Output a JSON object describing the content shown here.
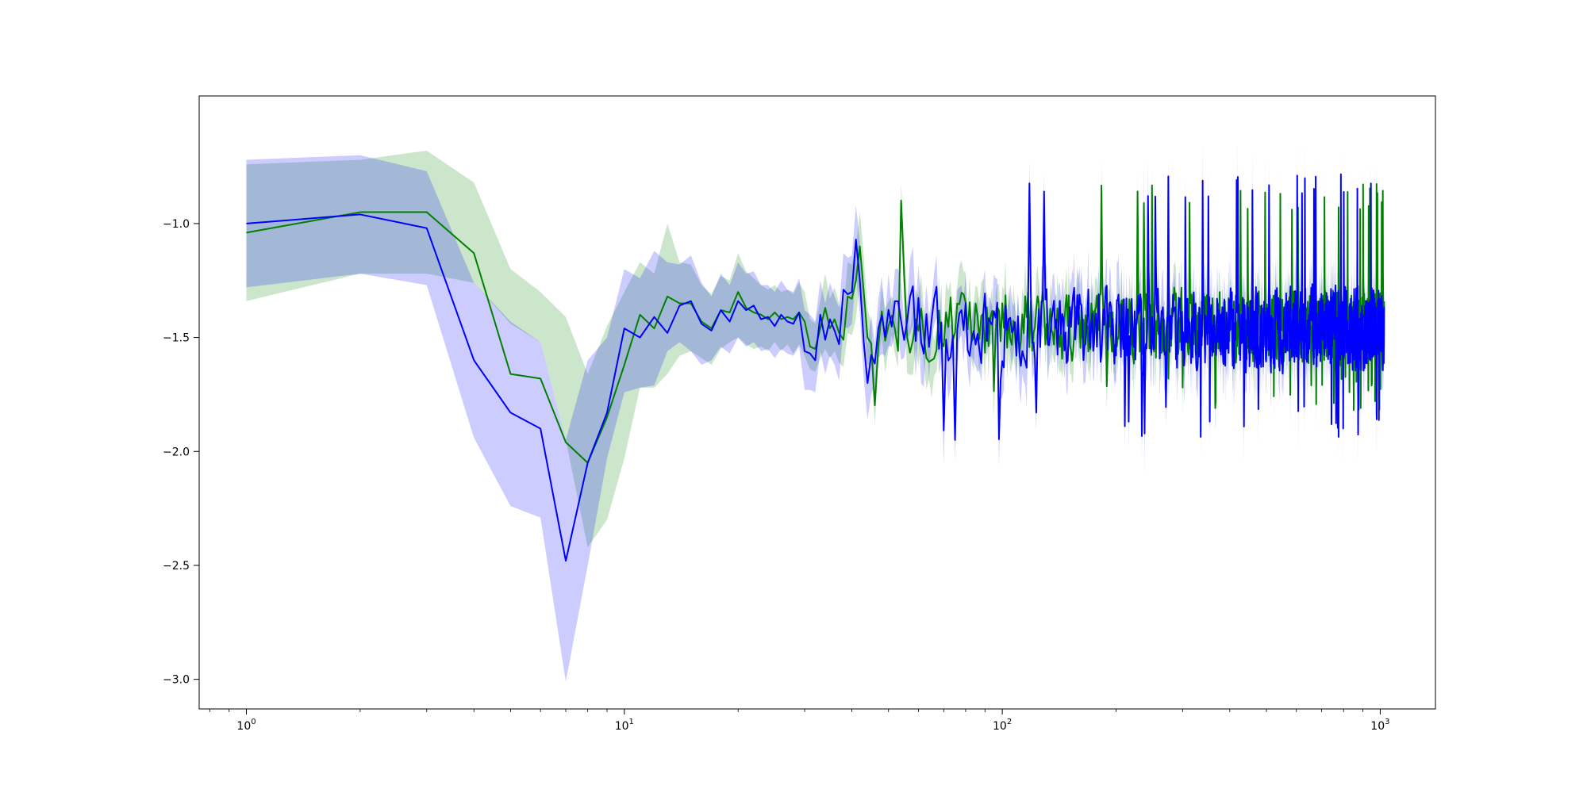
{
  "chart_data": {
    "type": "line",
    "title": "",
    "xlabel": "",
    "ylabel": "",
    "xscale": "log",
    "xlim": [
      0.75,
      1400
    ],
    "ylim": [
      -3.13,
      -0.44
    ],
    "grid": false,
    "legend": false,
    "x_ticks": [
      {
        "value": 1,
        "base": "10",
        "exp": "0"
      },
      {
        "value": 10,
        "base": "10",
        "exp": "1"
      },
      {
        "value": 100,
        "base": "10",
        "exp": "2"
      },
      {
        "value": 1000,
        "base": "10",
        "exp": "3"
      }
    ],
    "y_ticks": [
      {
        "value": -1.0,
        "label": "−1.0"
      },
      {
        "value": -1.5,
        "label": "−1.5"
      },
      {
        "value": -2.0,
        "label": "−2.0"
      },
      {
        "value": -2.5,
        "label": "−2.5"
      },
      {
        "value": -3.0,
        "label": "−3.0"
      }
    ],
    "series": [
      {
        "color": "#008000",
        "band_color": "#008000",
        "x": [
          1,
          2,
          3,
          4,
          5,
          6,
          7,
          8,
          9,
          10,
          11,
          12,
          13,
          14,
          15,
          16,
          17,
          18,
          19,
          20,
          21,
          22,
          23,
          24,
          25,
          26,
          27,
          28,
          29,
          30,
          31,
          32,
          33,
          34,
          35,
          36,
          37,
          38,
          39,
          40,
          41,
          42,
          43,
          44
        ],
        "values": [
          -1.04,
          -0.95,
          -0.95,
          -1.13,
          -1.66,
          -1.68,
          -1.96,
          -2.05,
          -1.85,
          -1.62,
          -1.4,
          -1.46,
          -1.32,
          -1.35,
          -1.35,
          -1.43,
          -1.46,
          -1.38,
          -1.39,
          -1.3,
          -1.37,
          -1.39,
          -1.4,
          -1.42,
          -1.39,
          -1.42,
          -1.41,
          -1.42,
          -1.39,
          -1.43,
          -1.54,
          -1.55,
          -1.46,
          -1.37,
          -1.46,
          -1.42,
          -1.48,
          -1.51,
          -1.32,
          -1.33,
          -1.25,
          -1.1,
          -1.3,
          -1.5
        ],
        "lower": [
          -1.34,
          -1.22,
          -1.22,
          -1.26,
          -1.44,
          -1.52,
          -1.95,
          -2.42,
          -2.3,
          -2.03,
          -1.72,
          -1.72,
          -1.66,
          -1.58,
          -1.56,
          -1.59,
          -1.62,
          -1.55,
          -1.52,
          -1.5,
          -1.53,
          -1.55,
          -1.54,
          -1.56,
          -1.52,
          -1.56,
          -1.53,
          -1.57,
          -1.53,
          -1.58,
          -1.64,
          -1.65,
          -1.59,
          -1.55,
          -1.59,
          -1.56,
          -1.61,
          -1.63,
          -1.48,
          -1.49,
          -1.42,
          -1.24,
          -1.45,
          -1.62
        ],
        "upper": [
          -0.74,
          -0.72,
          -0.68,
          -0.82,
          -1.2,
          -1.3,
          -1.41,
          -1.66,
          -1.45,
          -1.3,
          -1.17,
          -1.22,
          -1.0,
          -1.17,
          -1.18,
          -1.27,
          -1.31,
          -1.23,
          -1.25,
          -1.13,
          -1.21,
          -1.24,
          -1.27,
          -1.29,
          -1.27,
          -1.3,
          -1.29,
          -1.31,
          -1.26,
          -1.3,
          -1.42,
          -1.44,
          -1.34,
          -1.22,
          -1.33,
          -1.28,
          -1.35,
          -1.39,
          -1.17,
          -1.18,
          -1.1,
          -0.95,
          -1.14,
          -1.38
        ],
        "noise_tail": {
          "from": 45,
          "to": 1024,
          "center": -1.45,
          "amplitude": 0.14,
          "spike_max": -0.94,
          "spike_min": -1.82,
          "band_half_width": 0.12
        }
      },
      {
        "color": "#0000ff",
        "band_color": "#0000ff",
        "x": [
          1,
          2,
          3,
          4,
          5,
          6,
          7,
          8,
          9,
          10,
          11,
          12,
          13,
          14,
          15,
          16,
          17,
          18,
          19,
          20,
          21,
          22,
          23,
          24,
          25,
          26,
          27,
          28,
          29,
          30,
          31,
          32,
          33,
          34,
          35,
          36,
          37,
          38,
          39,
          40,
          41,
          42,
          43,
          44
        ],
        "values": [
          -1.0,
          -0.96,
          -1.02,
          -1.6,
          -1.83,
          -1.9,
          -2.48,
          -2.05,
          -1.83,
          -1.46,
          -1.5,
          -1.41,
          -1.48,
          -1.36,
          -1.34,
          -1.44,
          -1.47,
          -1.38,
          -1.43,
          -1.34,
          -1.38,
          -1.36,
          -1.42,
          -1.41,
          -1.45,
          -1.4,
          -1.43,
          -1.44,
          -1.39,
          -1.56,
          -1.57,
          -1.6,
          -1.4,
          -1.51,
          -1.42,
          -1.47,
          -1.53,
          -1.29,
          -1.31,
          -1.3,
          -1.07,
          -1.25,
          -1.52,
          -1.7
        ],
        "lower": [
          -1.28,
          -1.22,
          -1.27,
          -1.94,
          -2.24,
          -2.29,
          -3.01,
          -2.5,
          -2.03,
          -1.74,
          -1.72,
          -1.71,
          -1.56,
          -1.52,
          -1.56,
          -1.62,
          -1.6,
          -1.54,
          -1.57,
          -1.5,
          -1.54,
          -1.52,
          -1.56,
          -1.55,
          -1.59,
          -1.55,
          -1.57,
          -1.58,
          -1.54,
          -1.73,
          -1.73,
          -1.74,
          -1.56,
          -1.66,
          -1.58,
          -1.62,
          -1.69,
          -1.45,
          -1.46,
          -1.44,
          -1.22,
          -1.4,
          -1.68,
          -1.86
        ],
        "upper": [
          -0.72,
          -0.7,
          -0.77,
          -1.26,
          -1.43,
          -1.52,
          -1.95,
          -1.6,
          -1.5,
          -1.2,
          -1.24,
          -1.12,
          -1.17,
          -1.18,
          -1.14,
          -1.26,
          -1.32,
          -1.22,
          -1.27,
          -1.17,
          -1.22,
          -1.21,
          -1.27,
          -1.27,
          -1.3,
          -1.25,
          -1.29,
          -1.3,
          -1.24,
          -1.38,
          -1.4,
          -1.43,
          -1.25,
          -1.35,
          -1.26,
          -1.32,
          -1.37,
          -1.13,
          -1.15,
          -1.14,
          -0.92,
          -1.08,
          -1.36,
          -1.53
        ],
        "noise_tail": {
          "from": 45,
          "to": 1024,
          "center": -1.46,
          "amplitude": 0.16,
          "spike_max": -0.9,
          "spike_min": -1.95,
          "band_half_width": 0.13
        }
      }
    ]
  }
}
